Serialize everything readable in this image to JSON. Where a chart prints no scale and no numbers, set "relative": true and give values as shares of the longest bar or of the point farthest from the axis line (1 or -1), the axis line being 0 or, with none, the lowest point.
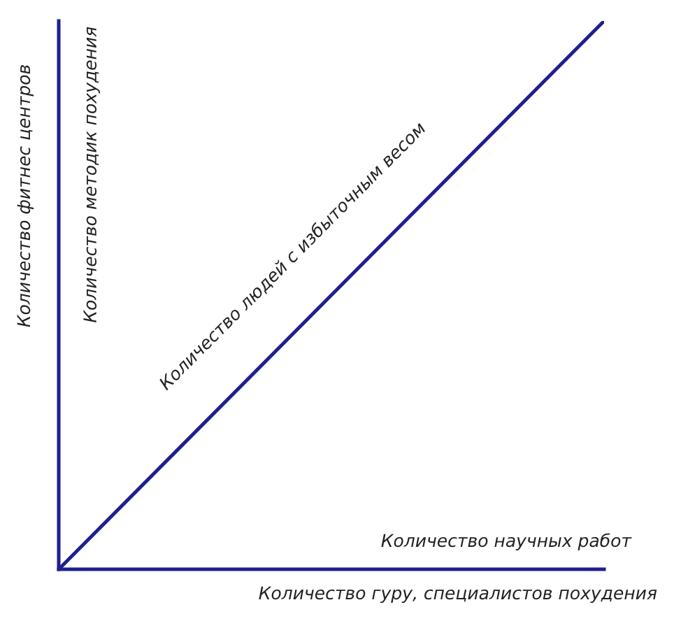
{
  "chart_data": {
    "type": "line",
    "relative": true,
    "categories": [
      null,
      null
    ],
    "series": [
      {
        "name": "Количество людей с избыточным весом",
        "color": "#1f1f8f",
        "values": [
          0,
          1
        ]
      }
    ],
    "xlabel": "Количество гуру, специалистов похудения",
    "ylabel": "Количество фитнес центров",
    "annotations": [
      "Количество методик похудения",
      "Количество научных работ"
    ],
    "grid": false,
    "legend": false,
    "marker": "none",
    "line_style": "solid"
  }
}
